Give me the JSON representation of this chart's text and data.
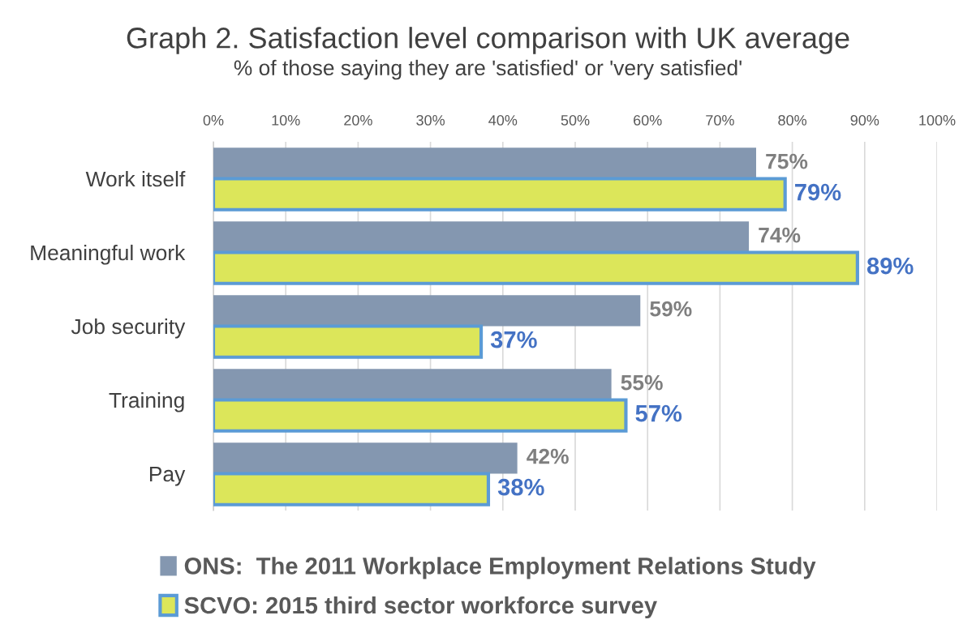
{
  "chart_data": {
    "type": "bar",
    "orientation": "horizontal",
    "title": "Graph 2. Satisfaction level comparison with UK average",
    "subtitle": "% of those saying they are 'satisfied' or 'very satisfied'",
    "categories": [
      "Work itself",
      "Meaningful work",
      "Job security",
      "Training",
      "Pay"
    ],
    "series": [
      {
        "name": "ONS:  The 2011 Workplace Employment Relations Study",
        "color": "#8497b0",
        "values": [
          75,
          74,
          59,
          55,
          42
        ],
        "value_labels": [
          "75%",
          "74%",
          "59%",
          "55%",
          "42%"
        ]
      },
      {
        "name": "SCVO: 2015 third sector workforce survey",
        "color": "#dce65a",
        "values": [
          79,
          89,
          37,
          57,
          38
        ],
        "value_labels": [
          "79%",
          "89%",
          "37%",
          "57%",
          "38%"
        ]
      }
    ],
    "xlim": [
      0,
      100
    ],
    "xticks": [
      {
        "value": 0,
        "label": "0%"
      },
      {
        "value": 10,
        "label": "10%"
      },
      {
        "value": 20,
        "label": "20%"
      },
      {
        "value": 30,
        "label": "30%"
      },
      {
        "value": 40,
        "label": "40%"
      },
      {
        "value": 50,
        "label": "50%"
      },
      {
        "value": 60,
        "label": "60%"
      },
      {
        "value": 70,
        "label": "70%"
      },
      {
        "value": 80,
        "label": "80%"
      },
      {
        "value": 90,
        "label": "90%"
      },
      {
        "value": 100,
        "label": "100%"
      }
    ],
    "grid": "x",
    "legend": "bottom"
  }
}
